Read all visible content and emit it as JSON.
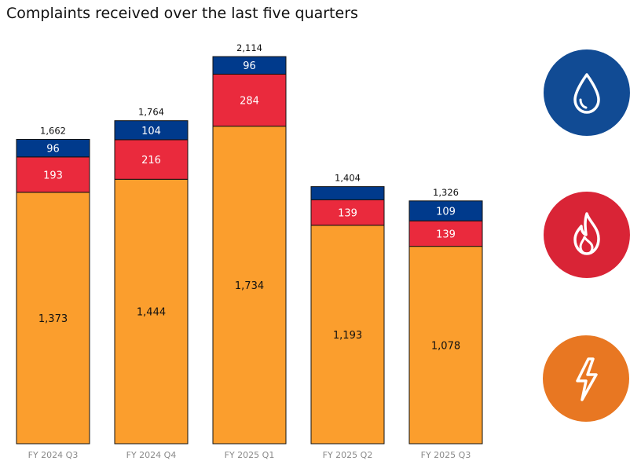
{
  "title": "Complaints received over the last five quarters",
  "colors": {
    "water": "#003a8c",
    "gas": "#ea2a3d",
    "electricity": "#fb9e2d",
    "water_icon_bg": "#114b94",
    "gas_icon_bg": "#d92436",
    "electricity_icon_bg": "#e87722"
  },
  "icons": [
    "water-drop-icon",
    "flame-icon",
    "lightning-bolt-icon"
  ],
  "chart_data": {
    "type": "bar",
    "stacked": true,
    "categories": [
      "FY 2024 Q3",
      "FY 2024 Q4",
      "FY 2025 Q1",
      "FY 2025 Q2",
      "FY 2025 Q3"
    ],
    "series": [
      {
        "values": [
          1373,
          1444,
          1734,
          1193,
          1078
        ],
        "labels": [
          "1,373",
          "1,444",
          "1,734",
          "1,193",
          "1,078"
        ]
      },
      {
        "values": [
          193,
          216,
          284,
          139,
          139
        ],
        "labels": [
          "193",
          "216",
          "284",
          "139",
          "139"
        ]
      },
      {
        "values": [
          96,
          104,
          96,
          72,
          109
        ],
        "labels": [
          "96",
          "104",
          "96",
          "",
          "109"
        ]
      }
    ],
    "totals": [
      "1,662",
      "1,764",
      "2,114",
      "1,404",
      "1,326"
    ],
    "ylim": [
      0,
      2200
    ],
    "grid": false,
    "legend": "none"
  }
}
